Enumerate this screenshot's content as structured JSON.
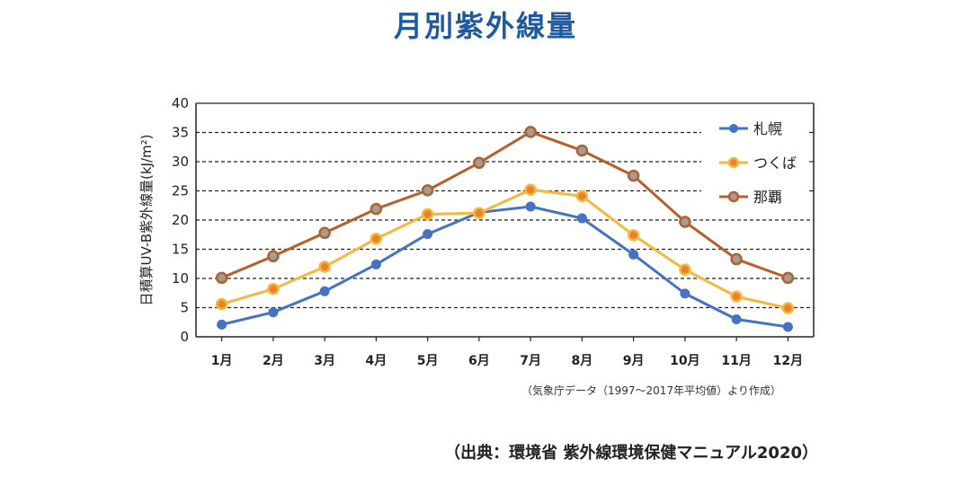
{
  "title": "月別紫外線量",
  "source": "（出典：環境省 紫外線環境保健マニュアル2020）",
  "chart_data": {
    "type": "line",
    "title": "月別紫外線量",
    "ylabel": "日積算UV-B紫外線量(kJ/m²)",
    "xlabel": "",
    "categories": [
      "1月",
      "2月",
      "3月",
      "4月",
      "5月",
      "6月",
      "7月",
      "8月",
      "9月",
      "10月",
      "11月",
      "12月"
    ],
    "ylim": [
      0,
      40
    ],
    "yticks": [
      0,
      5,
      10,
      15,
      20,
      25,
      30,
      35,
      40
    ],
    "grid": "horizontal dashed",
    "legend": "top-right",
    "note": "（気象庁データ（1997～2017年平均値）より作成）",
    "series": [
      {
        "name": "札幌",
        "color": "#4472c4",
        "values": [
          2.1,
          4.2,
          7.8,
          12.4,
          17.6,
          21.3,
          22.3,
          20.3,
          14.1,
          7.4,
          3.0,
          1.7
        ]
      },
      {
        "name": "つくば",
        "color": "#f5b83d",
        "values": [
          5.6,
          8.2,
          12.0,
          16.8,
          21.0,
          21.2,
          25.2,
          24.1,
          17.4,
          11.5,
          6.9,
          4.9
        ]
      },
      {
        "name": "那覇",
        "color": "#b85e2b",
        "values": [
          10.1,
          13.8,
          17.8,
          21.9,
          25.1,
          29.8,
          35.1,
          31.9,
          27.6,
          19.7,
          13.3,
          10.1
        ]
      }
    ]
  }
}
